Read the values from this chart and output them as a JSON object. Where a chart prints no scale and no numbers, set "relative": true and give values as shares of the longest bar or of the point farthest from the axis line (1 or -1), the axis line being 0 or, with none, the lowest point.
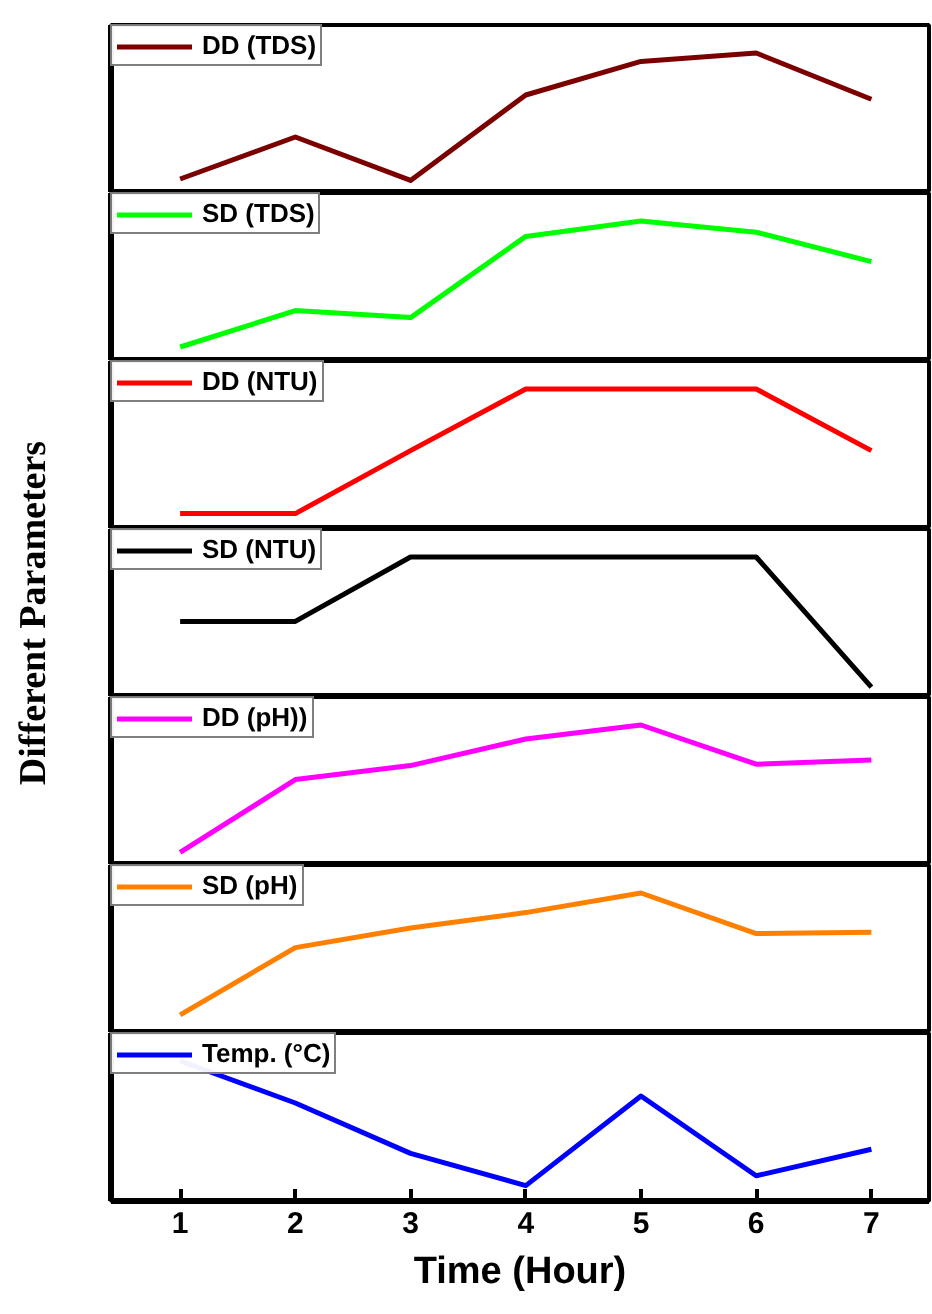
{
  "chart_data": [
    {
      "type": "line",
      "relative": true,
      "x": [
        1,
        2,
        3,
        4,
        5,
        6,
        7
      ],
      "xlim": [
        0.4,
        7.5
      ],
      "xticks": [
        1,
        2,
        3,
        4,
        5,
        6,
        7
      ],
      "tick_labels": false,
      "legend": "top left",
      "grid": false,
      "series": [
        {
          "name": "DD (TDS)",
          "color": "#7b0000",
          "values": [
            0.1,
            0.4,
            0.09,
            0.7,
            0.94,
            1.0,
            0.67
          ]
        }
      ]
    },
    {
      "type": "line",
      "relative": true,
      "x": [
        1,
        2,
        3,
        4,
        5,
        6,
        7
      ],
      "xlim": [
        0.4,
        7.5
      ],
      "xticks": [
        1,
        2,
        3,
        4,
        5,
        6,
        7
      ],
      "tick_labels": false,
      "legend": "top left",
      "grid": false,
      "series": [
        {
          "name": "SD (TDS)",
          "color": "#00ff00",
          "values": [
            0.1,
            0.36,
            0.31,
            0.89,
            1.0,
            0.92,
            0.71
          ]
        }
      ]
    },
    {
      "type": "line",
      "relative": true,
      "x": [
        1,
        2,
        3,
        4,
        5,
        6,
        7
      ],
      "xlim": [
        0.4,
        7.5
      ],
      "xticks": [
        1,
        2,
        3,
        4,
        5,
        6,
        7
      ],
      "tick_labels": false,
      "legend": "top left",
      "grid": false,
      "series": [
        {
          "name": "DD (NTU)",
          "color": "#ff0000",
          "values": [
            0.11,
            0.11,
            0.56,
            1.0,
            1.0,
            1.0,
            0.56
          ]
        }
      ]
    },
    {
      "type": "line",
      "relative": true,
      "ylabel": "Different Parameters",
      "x": [
        1,
        2,
        3,
        4,
        5,
        6,
        7
      ],
      "xlim": [
        0.4,
        7.5
      ],
      "xticks": [
        1,
        2,
        3,
        4,
        5,
        6,
        7
      ],
      "tick_labels": false,
      "legend": "top left",
      "grid": false,
      "series": [
        {
          "name": "SD (NTU)",
          "color": "#000000",
          "values": [
            0.54,
            0.54,
            1.0,
            1.0,
            1.0,
            1.0,
            0.07
          ]
        }
      ]
    },
    {
      "type": "line",
      "relative": true,
      "x": [
        1,
        2,
        3,
        4,
        5,
        6,
        7
      ],
      "xlim": [
        0.4,
        7.5
      ],
      "xticks": [
        1,
        2,
        3,
        4,
        5,
        6,
        7
      ],
      "tick_labels": false,
      "legend": "top left",
      "grid": false,
      "series": [
        {
          "name": "DD (pH))",
          "color": "#ff00ff",
          "values": [
            0.09,
            0.61,
            0.71,
            0.9,
            1.0,
            0.72,
            0.75
          ]
        }
      ]
    },
    {
      "type": "line",
      "relative": true,
      "x": [
        1,
        2,
        3,
        4,
        5,
        6,
        7
      ],
      "xlim": [
        0.4,
        7.5
      ],
      "xticks": [
        1,
        2,
        3,
        4,
        5,
        6,
        7
      ],
      "tick_labels": false,
      "legend": "top left",
      "grid": false,
      "series": [
        {
          "name": "SD (pH)",
          "color": "#ff8000",
          "values": [
            0.13,
            0.61,
            0.75,
            0.86,
            1.0,
            0.71,
            0.72
          ]
        }
      ]
    },
    {
      "type": "line",
      "relative": true,
      "xlabel": "Time (Hour)",
      "x": [
        1,
        2,
        3,
        4,
        5,
        6,
        7
      ],
      "xlim": [
        0.4,
        7.5
      ],
      "xticks": [
        1,
        2,
        3,
        4,
        5,
        6,
        7
      ],
      "tick_labels": "x",
      "legend": "top left",
      "grid": false,
      "series": [
        {
          "name": "Temp. (°C)",
          "color": "#0000ff",
          "values": [
            1.0,
            0.7,
            0.34,
            0.11,
            0.75,
            0.18,
            0.37
          ]
        }
      ]
    }
  ]
}
